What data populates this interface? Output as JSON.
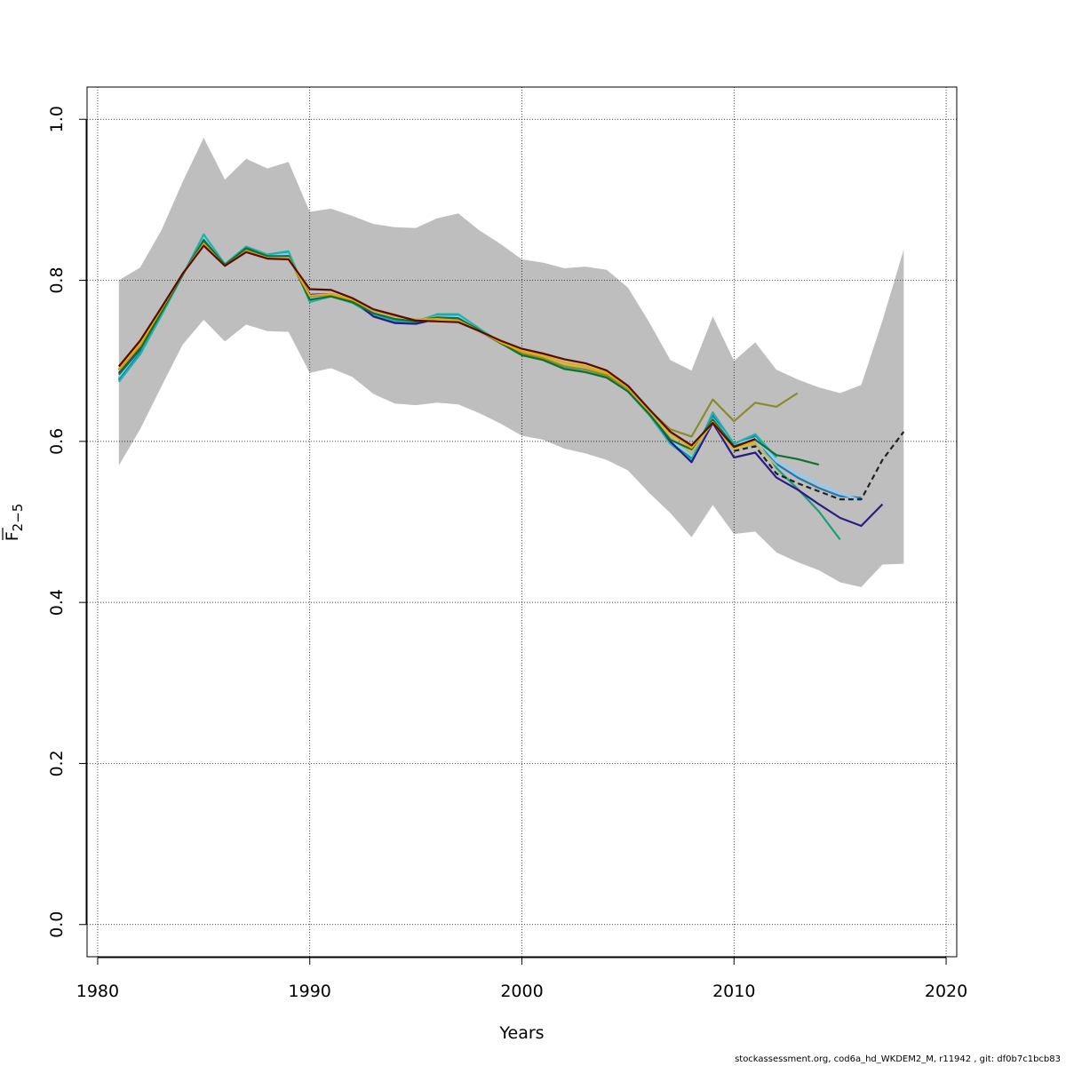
{
  "chart_data": {
    "type": "line",
    "title": "",
    "xlabel": "Years",
    "ylabel_main": "F",
    "ylabel_sub": "2−5",
    "xlim": [
      1979.5,
      2020.5
    ],
    "ylim": [
      -0.04,
      1.04
    ],
    "xticks": [
      1980,
      1990,
      2000,
      2010,
      2020
    ],
    "xtick_labels": [
      "1980",
      "1990",
      "2000",
      "2010",
      "2020"
    ],
    "yticks": [
      0.0,
      0.2,
      0.4,
      0.6,
      0.8,
      1.0
    ],
    "ytick_labels": [
      "0.0",
      "0.2",
      "0.4",
      "0.6",
      "0.8",
      "1.0"
    ],
    "grid": true,
    "band_color": "#bebebe",
    "band": {
      "x": [
        1981,
        1982,
        1983,
        1984,
        1985,
        1986,
        1987,
        1988,
        1989,
        1990,
        1991,
        1992,
        1993,
        1994,
        1995,
        1996,
        1997,
        1998,
        1999,
        2000,
        2001,
        2002,
        2003,
        2004,
        2005,
        2006,
        2007,
        2008,
        2009,
        2010,
        2011,
        2012,
        2013,
        2014,
        2015,
        2016,
        2017,
        2018
      ],
      "upper": [
        0.8,
        0.816,
        0.862,
        0.922,
        0.977,
        0.925,
        0.951,
        0.939,
        0.947,
        0.885,
        0.889,
        0.88,
        0.87,
        0.866,
        0.865,
        0.877,
        0.883,
        0.862,
        0.845,
        0.826,
        0.822,
        0.815,
        0.817,
        0.813,
        0.791,
        0.748,
        0.701,
        0.688,
        0.755,
        0.7,
        0.723,
        0.689,
        0.677,
        0.667,
        0.66,
        0.67,
        0.75,
        0.838
      ],
      "lower": [
        0.57,
        0.615,
        0.668,
        0.72,
        0.751,
        0.724,
        0.745,
        0.737,
        0.736,
        0.685,
        0.691,
        0.68,
        0.659,
        0.647,
        0.645,
        0.648,
        0.646,
        0.635,
        0.622,
        0.607,
        0.602,
        0.591,
        0.585,
        0.577,
        0.564,
        0.536,
        0.511,
        0.481,
        0.521,
        0.485,
        0.488,
        0.462,
        0.45,
        0.44,
        0.425,
        0.419,
        0.447,
        0.448
      ]
    },
    "series": [
      {
        "color": "#1b9e77",
        "x": [
          1981,
          1982,
          1983,
          1984,
          1985,
          1986,
          1987,
          1988,
          1989,
          1990,
          1991,
          1992,
          1993,
          1994,
          1995,
          1996,
          1997,
          1998,
          1999,
          2000,
          2001,
          2002,
          2003,
          2004,
          2005,
          2006,
          2007,
          2008,
          2009,
          2010,
          2011,
          2012,
          2013,
          2014,
          2015
        ],
        "values": [
          0.678,
          0.708,
          0.757,
          0.807,
          0.853,
          0.82,
          0.839,
          0.829,
          0.831,
          0.776,
          0.781,
          0.773,
          0.758,
          0.751,
          0.75,
          0.756,
          0.754,
          0.738,
          0.722,
          0.708,
          0.702,
          0.69,
          0.686,
          0.68,
          0.662,
          0.633,
          0.6,
          0.58,
          0.63,
          0.595,
          0.608,
          0.567,
          0.541,
          0.513,
          0.478
        ]
      },
      {
        "color": "#1f78b4",
        "x": [
          1981,
          1982,
          1983,
          1984,
          1985,
          1986,
          1987,
          1988,
          1989,
          1990,
          1991,
          1992,
          1993,
          1994,
          1995,
          1996,
          1997,
          1998,
          1999,
          2000,
          2001,
          2002,
          2003,
          2004,
          2005,
          2006,
          2007,
          2008,
          2009,
          2010,
          2011,
          2012,
          2013,
          2014,
          2015,
          2016
        ],
        "values": [
          0.676,
          0.712,
          0.758,
          0.806,
          0.856,
          0.819,
          0.841,
          0.831,
          0.834,
          0.774,
          0.782,
          0.773,
          0.756,
          0.748,
          0.747,
          0.757,
          0.757,
          0.739,
          0.722,
          0.709,
          0.702,
          0.693,
          0.688,
          0.681,
          0.663,
          0.633,
          0.598,
          0.578,
          0.633,
          0.597,
          0.606,
          0.572,
          0.555,
          0.542,
          0.532,
          0.53
        ]
      },
      {
        "color": "#87cefa",
        "x": [
          1981,
          1982,
          1983,
          1984,
          1985,
          1986,
          1987,
          1988,
          1989,
          1990,
          1991,
          1992,
          1993,
          1994,
          1995,
          1996,
          1997,
          1998,
          1999,
          2000,
          2001,
          2002,
          2003,
          2004,
          2005,
          2006,
          2007,
          2008,
          2009,
          2010,
          2011,
          2012,
          2013,
          2014,
          2015,
          2016
        ],
        "values": [
          0.68,
          0.714,
          0.76,
          0.808,
          0.854,
          0.821,
          0.84,
          0.83,
          0.833,
          0.778,
          0.782,
          0.774,
          0.76,
          0.752,
          0.749,
          0.755,
          0.755,
          0.738,
          0.722,
          0.708,
          0.702,
          0.692,
          0.687,
          0.681,
          0.663,
          0.634,
          0.601,
          0.582,
          0.628,
          0.596,
          0.604,
          0.575,
          0.56,
          0.548,
          0.535,
          0.527
        ]
      },
      {
        "color": "#20b2aa",
        "x": [
          1981,
          1982,
          1983,
          1984,
          1985,
          1986,
          1987,
          1988,
          1989,
          1990,
          1991,
          1992,
          1993,
          1994,
          1995,
          1996,
          1997,
          1998,
          1999,
          2000,
          2001,
          2002,
          2003,
          2004,
          2005,
          2006,
          2007,
          2008,
          2009,
          2010,
          2011,
          2012
        ],
        "values": [
          0.674,
          0.708,
          0.756,
          0.806,
          0.857,
          0.82,
          0.842,
          0.832,
          0.836,
          0.773,
          0.78,
          0.772,
          0.757,
          0.75,
          0.748,
          0.758,
          0.758,
          0.74,
          0.723,
          0.709,
          0.702,
          0.691,
          0.686,
          0.68,
          0.662,
          0.633,
          0.597,
          0.577,
          0.636,
          0.597,
          0.609,
          0.58
        ]
      },
      {
        "color": "#2b1a85",
        "x": [
          1981,
          1982,
          1983,
          1984,
          1985,
          1986,
          1987,
          1988,
          1989,
          1990,
          1991,
          1992,
          1993,
          1994,
          1995,
          1996,
          1997,
          1998,
          1999,
          2000,
          2001,
          2002,
          2003,
          2004,
          2005,
          2006,
          2007,
          2008,
          2009,
          2010,
          2011,
          2012,
          2013,
          2014,
          2015,
          2016,
          2017
        ],
        "values": [
          0.685,
          0.716,
          0.761,
          0.807,
          0.847,
          0.818,
          0.836,
          0.828,
          0.828,
          0.782,
          0.783,
          0.776,
          0.755,
          0.747,
          0.746,
          0.752,
          0.751,
          0.737,
          0.722,
          0.709,
          0.703,
          0.694,
          0.69,
          0.683,
          0.665,
          0.636,
          0.6,
          0.574,
          0.623,
          0.58,
          0.586,
          0.555,
          0.54,
          0.522,
          0.505,
          0.495,
          0.522
        ]
      },
      {
        "color": "#bdb76b",
        "x": [
          1981,
          1982,
          1983,
          1984,
          1985,
          1986,
          1987,
          1988,
          1989,
          1990,
          1991,
          1992,
          1993,
          1994,
          1995,
          1996,
          1997,
          1998,
          1999,
          2000,
          2001,
          2002,
          2003,
          2004,
          2005,
          2006,
          2007,
          2008,
          2009,
          2010,
          2011,
          2012
        ],
        "values": [
          0.688,
          0.719,
          0.762,
          0.807,
          0.846,
          0.819,
          0.837,
          0.829,
          0.829,
          0.78,
          0.782,
          0.776,
          0.762,
          0.755,
          0.751,
          0.753,
          0.752,
          0.738,
          0.723,
          0.71,
          0.704,
          0.695,
          0.69,
          0.683,
          0.665,
          0.636,
          0.605,
          0.585,
          0.624,
          0.588,
          0.597,
          0.57
        ]
      },
      {
        "color": "#8b8b2b",
        "x": [
          1981,
          1982,
          1983,
          1984,
          1985,
          1986,
          1987,
          1988,
          1989,
          1990,
          1991,
          1992,
          1993,
          1994,
          1995,
          1996,
          1997,
          1998,
          1999,
          2000,
          2001,
          2002,
          2003,
          2004,
          2005,
          2006,
          2007,
          2008,
          2009,
          2010,
          2011,
          2012,
          2013
        ],
        "values": [
          0.689,
          0.72,
          0.763,
          0.808,
          0.846,
          0.82,
          0.837,
          0.829,
          0.83,
          0.78,
          0.782,
          0.775,
          0.763,
          0.756,
          0.751,
          0.752,
          0.751,
          0.737,
          0.723,
          0.709,
          0.703,
          0.693,
          0.689,
          0.682,
          0.666,
          0.639,
          0.615,
          0.606,
          0.652,
          0.625,
          0.648,
          0.643,
          0.66
        ]
      },
      {
        "color": "#126f32",
        "x": [
          1981,
          1982,
          1983,
          1984,
          1985,
          1986,
          1987,
          1988,
          1989,
          1990,
          1991,
          1992,
          1993,
          1994,
          1995,
          1996,
          1997,
          1998,
          1999,
          2000,
          2001,
          2002,
          2003,
          2004,
          2005,
          2006,
          2007,
          2008,
          2009,
          2010,
          2011,
          2012,
          2013,
          2014
        ],
        "values": [
          0.683,
          0.714,
          0.76,
          0.807,
          0.85,
          0.819,
          0.84,
          0.83,
          0.83,
          0.776,
          0.78,
          0.773,
          0.759,
          0.752,
          0.749,
          0.754,
          0.753,
          0.738,
          0.722,
          0.707,
          0.701,
          0.69,
          0.686,
          0.679,
          0.662,
          0.634,
          0.602,
          0.59,
          0.627,
          0.594,
          0.602,
          0.583,
          0.578,
          0.571
        ]
      },
      {
        "color": "#e6ac00",
        "x": [
          1981,
          1982,
          1983,
          1984,
          1985,
          1986,
          1987,
          1988,
          1989,
          1990,
          1991,
          1992,
          1993,
          1994,
          1995,
          1996,
          1997,
          1998,
          1999,
          2000,
          2001,
          2002,
          2003,
          2004,
          2005,
          2006,
          2007,
          2008,
          2009,
          2010,
          2011
        ],
        "values": [
          0.69,
          0.721,
          0.764,
          0.808,
          0.845,
          0.818,
          0.836,
          0.828,
          0.828,
          0.781,
          0.783,
          0.776,
          0.763,
          0.756,
          0.751,
          0.752,
          0.75,
          0.737,
          0.723,
          0.712,
          0.706,
          0.698,
          0.693,
          0.685,
          0.667,
          0.638,
          0.61,
          0.592,
          0.624,
          0.592,
          0.6
        ]
      },
      {
        "color": "#222222",
        "dashed": true,
        "x": [
          2010,
          2011,
          2012,
          2013,
          2014,
          2015,
          2016,
          2017,
          2018
        ],
        "values": [
          0.588,
          0.594,
          0.56,
          0.548,
          0.538,
          0.528,
          0.528,
          0.577,
          0.612
        ]
      },
      {
        "color": "#5a0a00",
        "x": [
          1981,
          1982,
          1983,
          1984,
          1985,
          1986,
          1987,
          1988,
          1989,
          1990,
          1991,
          1992,
          1993,
          1994,
          1995,
          1996,
          1997,
          1998,
          1999,
          2000,
          2001,
          2002,
          2003,
          2004,
          2005,
          2006,
          2007,
          2008,
          2009,
          2010,
          2011
        ],
        "values": [
          0.693,
          0.725,
          0.766,
          0.808,
          0.843,
          0.818,
          0.835,
          0.827,
          0.826,
          0.789,
          0.788,
          0.778,
          0.764,
          0.757,
          0.75,
          0.749,
          0.748,
          0.737,
          0.725,
          0.715,
          0.709,
          0.702,
          0.697,
          0.688,
          0.669,
          0.64,
          0.612,
          0.595,
          0.623,
          0.593,
          0.603
        ]
      }
    ]
  },
  "footer": {
    "credit": "stockassessment.org, cod6a_hd_WKDEM2_M, r11942 , git: df0b7c1bcb83"
  }
}
